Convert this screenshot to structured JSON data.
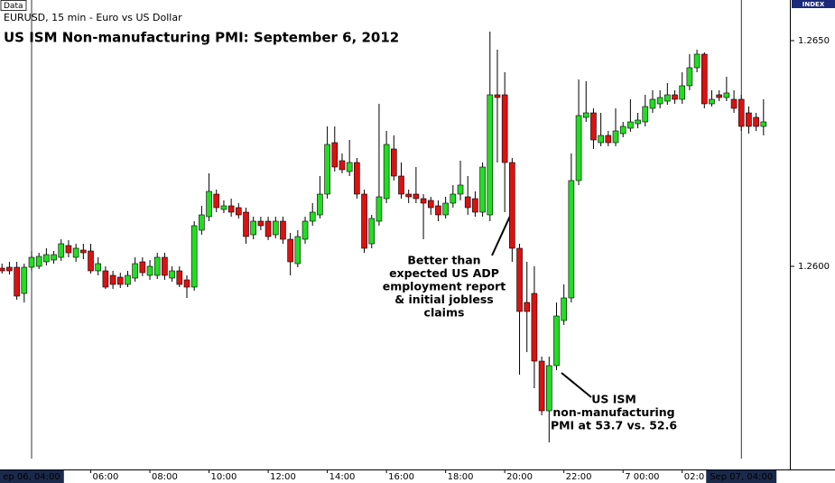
{
  "chart_data": {
    "type": "candlestick",
    "data_tag": "Data",
    "subtitle": "EURUSD, 15 min - Euro vs US Dollar",
    "title": "US ISM Non-manufacturing PMI: September 6, 2012",
    "index_tag": "INDEX",
    "up_color": "#22dd22",
    "down_color": "#dd1111",
    "categories": [
      null,
      null,
      null,
      null,
      "ep 06, 04:00",
      null,
      null,
      null,
      null,
      null,
      null,
      null,
      "06:00",
      null,
      null,
      null,
      null,
      null,
      null,
      null,
      "08:00",
      null,
      null,
      null,
      null,
      null,
      null,
      null,
      "10:00",
      null,
      null,
      null,
      null,
      null,
      null,
      null,
      "12:00",
      null,
      null,
      null,
      null,
      null,
      null,
      null,
      "14:00",
      null,
      null,
      null,
      null,
      null,
      null,
      null,
      "16:00",
      null,
      null,
      null,
      null,
      null,
      null,
      null,
      "18:00",
      null,
      null,
      null,
      null,
      null,
      null,
      null,
      "20:00",
      null,
      null,
      null,
      null,
      null,
      null,
      null,
      "22:00",
      null,
      null,
      null,
      null,
      null,
      null,
      null,
      "7 00:00",
      null,
      null,
      null,
      null,
      null,
      null,
      null,
      "02:0",
      null,
      null,
      null,
      null,
      null,
      null,
      null,
      "Sep 07, 04:00",
      null,
      null,
      null
    ],
    "cursor_categories": [
      4,
      100
    ],
    "open": [
      1.25996,
      1.25998,
      1.25998,
      1.2594,
      1.25998,
      1.26,
      1.2601,
      1.26014,
      1.2602,
      1.26046,
      1.2602,
      1.26036,
      1.26034,
      1.2599,
      1.2599,
      1.2598,
      1.25976,
      1.2596,
      1.25974,
      1.2601,
      1.2598,
      1.2598,
      1.2602,
      1.25974,
      1.2599,
      1.2597,
      1.25954,
      1.2608,
      1.2611,
      1.2616,
      1.26126,
      1.26134,
      1.2613,
      1.2612,
      1.2607,
      1.261,
      1.261,
      1.2607,
      1.261,
      1.2606,
      1.26006,
      1.2606,
      1.261,
      1.26114,
      1.2616,
      1.26274,
      1.26234,
      1.2621,
      1.2623,
      1.2616,
      1.2605,
      1.261,
      1.2615,
      1.2626,
      1.262,
      1.2616,
      1.2616,
      1.2615,
      1.26146,
      1.26134,
      1.26114,
      1.2614,
      1.2616,
      1.26154,
      1.2615,
      1.2612,
      1.26114,
      1.2638,
      1.2638,
      1.2623,
      1.2604,
      1.2592,
      1.2594,
      1.2579,
      1.2568,
      1.2578,
      1.2588,
      1.2593,
      1.2619,
      1.2633,
      1.2634,
      1.26274,
      1.2629,
      1.26274,
      1.26294,
      1.26306,
      1.26316,
      1.2632,
      1.2635,
      1.2636,
      1.26366,
      1.2638,
      1.2637,
      1.264,
      1.2644,
      1.2647,
      1.2636,
      1.2638,
      1.26374,
      1.2637,
      1.2637,
      1.2634,
      1.2633,
      1.2631
    ],
    "close": [
      1.2599,
      1.2599,
      1.25934,
      1.25998,
      1.2602,
      1.26022,
      1.26026,
      1.26026,
      1.2605,
      1.2603,
      1.2604,
      1.2603,
      1.2599,
      1.26006,
      1.25954,
      1.2596,
      1.2596,
      1.2598,
      1.26006,
      1.25986,
      1.26,
      1.2602,
      1.2598,
      1.2599,
      1.2596,
      1.25954,
      1.2609,
      1.26114,
      1.26166,
      1.2613,
      1.26134,
      1.2612,
      1.26114,
      1.26066,
      1.261,
      1.2609,
      1.26066,
      1.261,
      1.2606,
      1.2601,
      1.26066,
      1.261,
      1.2612,
      1.2616,
      1.2627,
      1.2622,
      1.26214,
      1.2623,
      1.2616,
      1.2604,
      1.26106,
      1.26154,
      1.2627,
      1.262,
      1.2616,
      1.26154,
      1.2615,
      1.2614,
      1.2613,
      1.26114,
      1.2614,
      1.2616,
      1.2618,
      1.2613,
      1.2612,
      1.2622,
      1.2638,
      1.26374,
      1.2623,
      1.2604,
      1.259,
      1.259,
      1.2579,
      1.2568,
      1.2578,
      1.2589,
      1.2593,
      1.2619,
      1.26334,
      1.2634,
      1.2628,
      1.2629,
      1.26274,
      1.263,
      1.2631,
      1.2632,
      1.26324,
      1.26354,
      1.2637,
      1.26374,
      1.2638,
      1.2637,
      1.264,
      1.2644,
      1.2647,
      1.2636,
      1.2637,
      1.26374,
      1.26384,
      1.2635,
      1.2631,
      1.2631,
      1.2631,
      1.2632
    ],
    "high": [
      1.26006,
      1.2601,
      1.2601,
      1.26006,
      1.26034,
      1.2603,
      1.2604,
      1.26034,
      1.2606,
      1.26058,
      1.2605,
      1.2605,
      1.2605,
      1.2602,
      1.26,
      1.2599,
      1.25986,
      1.2599,
      1.2602,
      1.2602,
      1.26014,
      1.2603,
      1.2603,
      1.26,
      1.26,
      1.2598,
      1.261,
      1.26134,
      1.26206,
      1.2617,
      1.26146,
      1.2615,
      1.2614,
      1.2613,
      1.2611,
      1.2611,
      1.2611,
      1.2611,
      1.2611,
      1.26074,
      1.2608,
      1.2611,
      1.2614,
      1.262,
      1.2631,
      1.2631,
      1.2625,
      1.2628,
      1.2624,
      1.2617,
      1.26114,
      1.2636,
      1.263,
      1.2629,
      1.2623,
      1.2617,
      1.2622,
      1.2616,
      1.26154,
      1.26146,
      1.26154,
      1.2618,
      1.26234,
      1.262,
      1.26166,
      1.2623,
      1.2652,
      1.2648,
      1.2643,
      1.2624,
      1.2605,
      1.2601,
      1.26,
      1.258,
      1.258,
      1.2592,
      1.2596,
      1.2625,
      1.26414,
      1.2641,
      1.2635,
      1.2634,
      1.263,
      1.2635,
      1.2632,
      1.2637,
      1.2634,
      1.2638,
      1.2639,
      1.2639,
      1.26406,
      1.2639,
      1.2643,
      1.2647,
      1.2648,
      1.26474,
      1.2639,
      1.2639,
      1.2642,
      1.2639,
      1.2638,
      1.26354,
      1.2634,
      1.2637
    ],
    "low": [
      1.25984,
      1.25982,
      1.25926,
      1.2592,
      1.2599,
      1.25994,
      1.26002,
      1.26006,
      1.26012,
      1.2602,
      1.2601,
      1.26016,
      1.25984,
      1.2598,
      1.2595,
      1.2595,
      1.25952,
      1.25954,
      1.25966,
      1.25978,
      1.2597,
      1.25972,
      1.2597,
      1.25966,
      1.25954,
      1.2593,
      1.25946,
      1.2607,
      1.261,
      1.2612,
      1.26118,
      1.2611,
      1.26106,
      1.2605,
      1.2606,
      1.2608,
      1.26058,
      1.26062,
      1.2605,
      1.2598,
      1.25998,
      1.2605,
      1.2609,
      1.26106,
      1.2615,
      1.2621,
      1.26206,
      1.262,
      1.2615,
      1.2603,
      1.2604,
      1.2609,
      1.2614,
      1.2619,
      1.2615,
      1.2614,
      1.2614,
      1.2606,
      1.26114,
      1.261,
      1.26106,
      1.2613,
      1.26146,
      1.26114,
      1.2611,
      1.2611,
      1.261,
      1.2623,
      1.2612,
      1.2601,
      1.2576,
      1.2581,
      1.2573,
      1.2567,
      1.2561,
      1.2577,
      1.2587,
      1.2592,
      1.2618,
      1.2632,
      1.2626,
      1.26266,
      1.26266,
      1.26266,
      1.26286,
      1.26298,
      1.26306,
      1.2631,
      1.2634,
      1.2635,
      1.26358,
      1.2636,
      1.2636,
      1.2639,
      1.2643,
      1.2635,
      1.26354,
      1.26366,
      1.26366,
      1.2634,
      1.263,
      1.26294,
      1.263,
      1.2629
    ],
    "ylim": [
      1.2555,
      1.2659
    ],
    "yticks": [
      {
        "value": 1.26,
        "label": "1.2600"
      },
      {
        "value": 1.265,
        "label": "1.2650"
      }
    ],
    "annotations": [
      {
        "lines": [
          "Better than",
          "expected US ADP",
          "employment report",
          "& initial jobless",
          "claims"
        ]
      },
      {
        "lines": [
          "US ISM",
          "non-manufacturing",
          "PMI at 53.7 vs. 52.6"
        ]
      }
    ]
  }
}
